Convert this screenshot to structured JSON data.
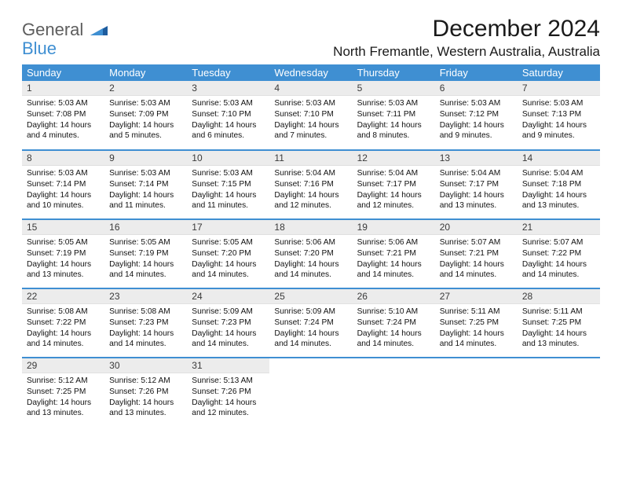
{
  "logo": {
    "line1": "General",
    "line2": "Blue"
  },
  "title": "December 2024",
  "location": "North Fremantle, Western Australia, Australia",
  "colors": {
    "header_bg": "#3f8fd2",
    "header_text": "#ffffff",
    "daynum_bg": "#ececec",
    "row_sep": "#3f8fd2",
    "logo_gray": "#5d5d5d",
    "logo_blue": "#3f8fd2"
  },
  "weekdays": [
    "Sunday",
    "Monday",
    "Tuesday",
    "Wednesday",
    "Thursday",
    "Friday",
    "Saturday"
  ],
  "weeks": [
    [
      {
        "n": "1",
        "sr": "Sunrise: 5:03 AM",
        "ss": "Sunset: 7:08 PM",
        "dl": "Daylight: 14 hours and 4 minutes."
      },
      {
        "n": "2",
        "sr": "Sunrise: 5:03 AM",
        "ss": "Sunset: 7:09 PM",
        "dl": "Daylight: 14 hours and 5 minutes."
      },
      {
        "n": "3",
        "sr": "Sunrise: 5:03 AM",
        "ss": "Sunset: 7:10 PM",
        "dl": "Daylight: 14 hours and 6 minutes."
      },
      {
        "n": "4",
        "sr": "Sunrise: 5:03 AM",
        "ss": "Sunset: 7:10 PM",
        "dl": "Daylight: 14 hours and 7 minutes."
      },
      {
        "n": "5",
        "sr": "Sunrise: 5:03 AM",
        "ss": "Sunset: 7:11 PM",
        "dl": "Daylight: 14 hours and 8 minutes."
      },
      {
        "n": "6",
        "sr": "Sunrise: 5:03 AM",
        "ss": "Sunset: 7:12 PM",
        "dl": "Daylight: 14 hours and 9 minutes."
      },
      {
        "n": "7",
        "sr": "Sunrise: 5:03 AM",
        "ss": "Sunset: 7:13 PM",
        "dl": "Daylight: 14 hours and 9 minutes."
      }
    ],
    [
      {
        "n": "8",
        "sr": "Sunrise: 5:03 AM",
        "ss": "Sunset: 7:14 PM",
        "dl": "Daylight: 14 hours and 10 minutes."
      },
      {
        "n": "9",
        "sr": "Sunrise: 5:03 AM",
        "ss": "Sunset: 7:14 PM",
        "dl": "Daylight: 14 hours and 11 minutes."
      },
      {
        "n": "10",
        "sr": "Sunrise: 5:03 AM",
        "ss": "Sunset: 7:15 PM",
        "dl": "Daylight: 14 hours and 11 minutes."
      },
      {
        "n": "11",
        "sr": "Sunrise: 5:04 AM",
        "ss": "Sunset: 7:16 PM",
        "dl": "Daylight: 14 hours and 12 minutes."
      },
      {
        "n": "12",
        "sr": "Sunrise: 5:04 AM",
        "ss": "Sunset: 7:17 PM",
        "dl": "Daylight: 14 hours and 12 minutes."
      },
      {
        "n": "13",
        "sr": "Sunrise: 5:04 AM",
        "ss": "Sunset: 7:17 PM",
        "dl": "Daylight: 14 hours and 13 minutes."
      },
      {
        "n": "14",
        "sr": "Sunrise: 5:04 AM",
        "ss": "Sunset: 7:18 PM",
        "dl": "Daylight: 14 hours and 13 minutes."
      }
    ],
    [
      {
        "n": "15",
        "sr": "Sunrise: 5:05 AM",
        "ss": "Sunset: 7:19 PM",
        "dl": "Daylight: 14 hours and 13 minutes."
      },
      {
        "n": "16",
        "sr": "Sunrise: 5:05 AM",
        "ss": "Sunset: 7:19 PM",
        "dl": "Daylight: 14 hours and 14 minutes."
      },
      {
        "n": "17",
        "sr": "Sunrise: 5:05 AM",
        "ss": "Sunset: 7:20 PM",
        "dl": "Daylight: 14 hours and 14 minutes."
      },
      {
        "n": "18",
        "sr": "Sunrise: 5:06 AM",
        "ss": "Sunset: 7:20 PM",
        "dl": "Daylight: 14 hours and 14 minutes."
      },
      {
        "n": "19",
        "sr": "Sunrise: 5:06 AM",
        "ss": "Sunset: 7:21 PM",
        "dl": "Daylight: 14 hours and 14 minutes."
      },
      {
        "n": "20",
        "sr": "Sunrise: 5:07 AM",
        "ss": "Sunset: 7:21 PM",
        "dl": "Daylight: 14 hours and 14 minutes."
      },
      {
        "n": "21",
        "sr": "Sunrise: 5:07 AM",
        "ss": "Sunset: 7:22 PM",
        "dl": "Daylight: 14 hours and 14 minutes."
      }
    ],
    [
      {
        "n": "22",
        "sr": "Sunrise: 5:08 AM",
        "ss": "Sunset: 7:22 PM",
        "dl": "Daylight: 14 hours and 14 minutes."
      },
      {
        "n": "23",
        "sr": "Sunrise: 5:08 AM",
        "ss": "Sunset: 7:23 PM",
        "dl": "Daylight: 14 hours and 14 minutes."
      },
      {
        "n": "24",
        "sr": "Sunrise: 5:09 AM",
        "ss": "Sunset: 7:23 PM",
        "dl": "Daylight: 14 hours and 14 minutes."
      },
      {
        "n": "25",
        "sr": "Sunrise: 5:09 AM",
        "ss": "Sunset: 7:24 PM",
        "dl": "Daylight: 14 hours and 14 minutes."
      },
      {
        "n": "26",
        "sr": "Sunrise: 5:10 AM",
        "ss": "Sunset: 7:24 PM",
        "dl": "Daylight: 14 hours and 14 minutes."
      },
      {
        "n": "27",
        "sr": "Sunrise: 5:11 AM",
        "ss": "Sunset: 7:25 PM",
        "dl": "Daylight: 14 hours and 14 minutes."
      },
      {
        "n": "28",
        "sr": "Sunrise: 5:11 AM",
        "ss": "Sunset: 7:25 PM",
        "dl": "Daylight: 14 hours and 13 minutes."
      }
    ],
    [
      {
        "n": "29",
        "sr": "Sunrise: 5:12 AM",
        "ss": "Sunset: 7:25 PM",
        "dl": "Daylight: 14 hours and 13 minutes."
      },
      {
        "n": "30",
        "sr": "Sunrise: 5:12 AM",
        "ss": "Sunset: 7:26 PM",
        "dl": "Daylight: 14 hours and 13 minutes."
      },
      {
        "n": "31",
        "sr": "Sunrise: 5:13 AM",
        "ss": "Sunset: 7:26 PM",
        "dl": "Daylight: 14 hours and 12 minutes."
      },
      {
        "n": "",
        "sr": "",
        "ss": "",
        "dl": "",
        "empty": true
      },
      {
        "n": "",
        "sr": "",
        "ss": "",
        "dl": "",
        "empty": true
      },
      {
        "n": "",
        "sr": "",
        "ss": "",
        "dl": "",
        "empty": true
      },
      {
        "n": "",
        "sr": "",
        "ss": "",
        "dl": "",
        "empty": true
      }
    ]
  ]
}
